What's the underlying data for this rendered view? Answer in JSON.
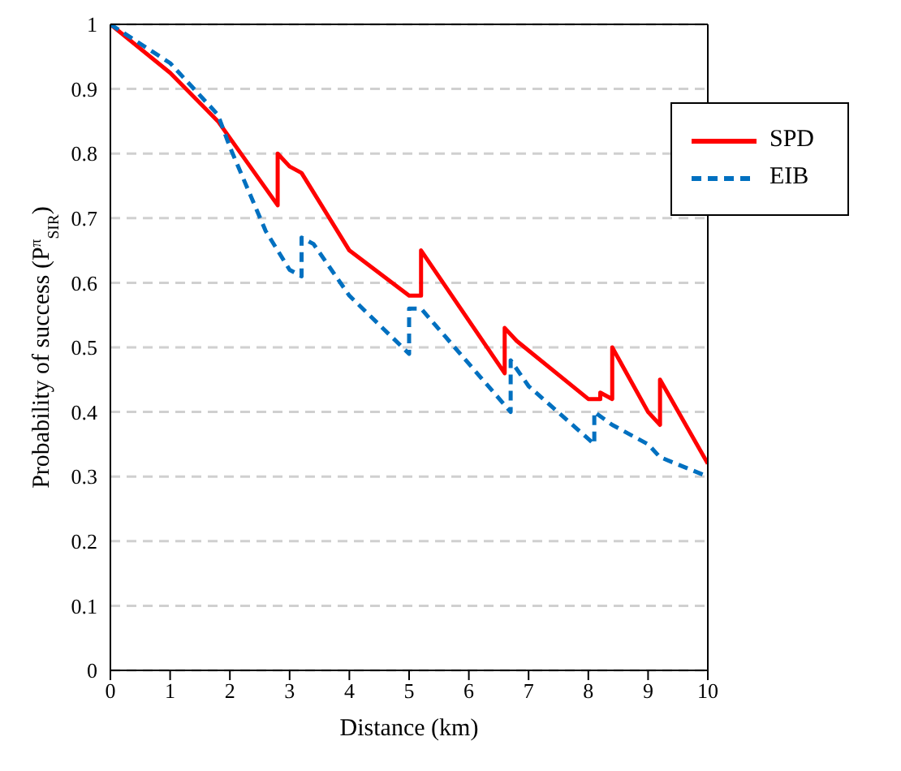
{
  "chart_data": {
    "type": "line",
    "xlabel": "Distance (km)",
    "ylabel": "Probability  of success (P$^{π}$$_{SIR}$)",
    "xlim": [
      0,
      10
    ],
    "xticks": [
      0,
      1,
      2,
      3,
      4,
      5,
      6,
      7,
      8,
      9,
      10
    ],
    "ylim": [
      0,
      1
    ],
    "yticks": [
      0,
      0.1,
      0.2,
      0.3,
      0.4,
      0.5,
      0.6,
      0.7,
      0.8,
      0.9,
      1
    ],
    "grid": "y",
    "legend": "top right",
    "marker": "none",
    "series": [
      {
        "name": "SPD",
        "color": "#ff0000",
        "line_style": "solid",
        "x": [
          0,
          1,
          1.8,
          2.8,
          2.8,
          3.0,
          3.2,
          4.0,
          5.0,
          5.2,
          5.2,
          6.6,
          6.6,
          6.8,
          8.0,
          8.2,
          8.2,
          8.4,
          8.4,
          9.0,
          9.2,
          9.2,
          10
        ],
        "values": [
          1,
          0.925,
          0.85,
          0.72,
          0.8,
          0.78,
          0.77,
          0.65,
          0.58,
          0.58,
          0.65,
          0.46,
          0.53,
          0.51,
          0.42,
          0.42,
          0.43,
          0.42,
          0.5,
          0.4,
          0.38,
          0.45,
          0.32
        ]
      },
      {
        "name": "EIB",
        "color": "#0070c0",
        "line_style": "dashed",
        "x": [
          0,
          1,
          1.8,
          2.0,
          2.6,
          3.0,
          3.2,
          3.2,
          3.4,
          4.0,
          5.0,
          5.0,
          5.2,
          6.7,
          6.7,
          7.0,
          8.1,
          8.1,
          8.4,
          9.0,
          9.2,
          10
        ],
        "values": [
          1,
          0.94,
          0.86,
          0.81,
          0.68,
          0.62,
          0.61,
          0.67,
          0.66,
          0.58,
          0.49,
          0.56,
          0.56,
          0.4,
          0.48,
          0.44,
          0.35,
          0.4,
          0.38,
          0.35,
          0.33,
          0.3
        ]
      }
    ]
  }
}
